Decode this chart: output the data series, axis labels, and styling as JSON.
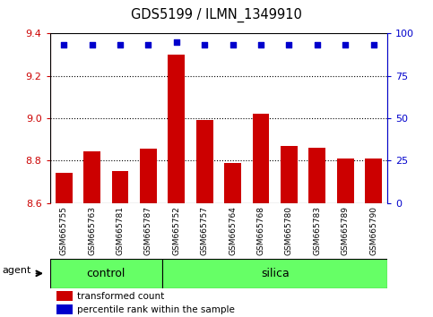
{
  "title": "GDS5199 / ILMN_1349910",
  "samples": [
    "GSM665755",
    "GSM665763",
    "GSM665781",
    "GSM665787",
    "GSM665752",
    "GSM665757",
    "GSM665764",
    "GSM665768",
    "GSM665780",
    "GSM665783",
    "GSM665789",
    "GSM665790"
  ],
  "transformed_counts": [
    8.74,
    8.845,
    8.75,
    8.855,
    9.3,
    8.99,
    8.79,
    9.02,
    8.87,
    8.86,
    8.81,
    8.81
  ],
  "percentile_ranks": [
    93,
    93,
    93,
    93,
    95,
    93,
    93,
    93,
    93,
    93,
    93,
    93
  ],
  "n_control": 4,
  "ylim_left": [
    8.6,
    9.4
  ],
  "ylim_right": [
    0,
    100
  ],
  "yticks_left": [
    8.6,
    8.8,
    9.0,
    9.2,
    9.4
  ],
  "yticks_right": [
    0,
    25,
    50,
    75,
    100
  ],
  "bar_color": "#cc0000",
  "dot_color": "#0000cc",
  "group_color": "#66ff66",
  "xtick_bg": "#cccccc",
  "plot_bg": "#ffffff",
  "legend_bar_label": "transformed count",
  "legend_dot_label": "percentile rank within the sample",
  "agent_label": "agent",
  "control_label": "control",
  "silica_label": "silica"
}
